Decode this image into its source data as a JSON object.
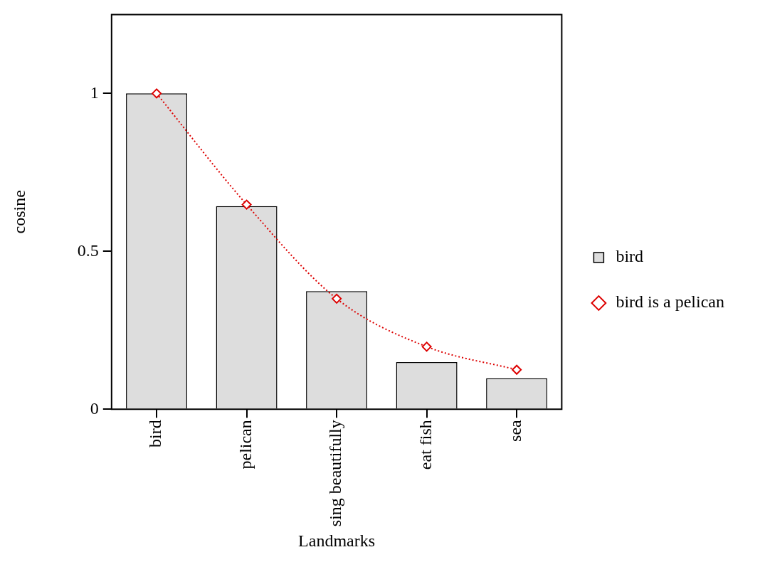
{
  "chart_data": {
    "type": "bar",
    "xlabel": "Landmarks",
    "ylabel": "cosine",
    "categories": [
      "bird",
      "pelican",
      "sing beautifully",
      "eat fish",
      "sea"
    ],
    "series": [
      {
        "name": "bird",
        "type": "bar",
        "color": "#dddddd",
        "values": [
          1.0,
          0.643,
          0.374,
          0.149,
          0.098
        ]
      },
      {
        "name": "bird is a pelican",
        "type": "line",
        "color": "#dd0000",
        "values": [
          1.0,
          0.648,
          0.35,
          0.198,
          0.125
        ],
        "marker": "diamond",
        "line_style": "dotted"
      }
    ],
    "ylim": [
      0,
      1.25
    ],
    "yticks": [
      0,
      0.5,
      1
    ],
    "grid": false,
    "legend": "right"
  }
}
